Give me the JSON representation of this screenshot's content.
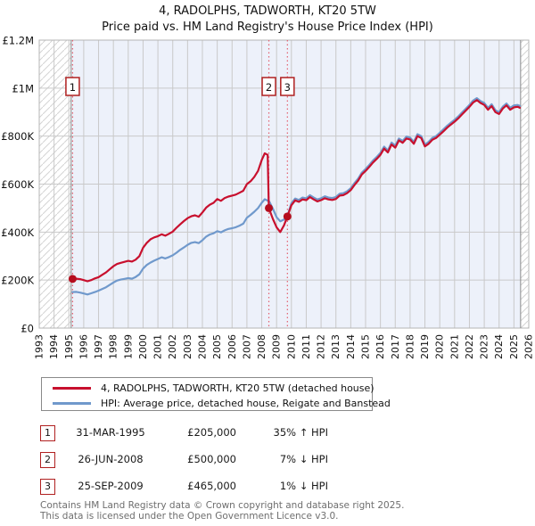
{
  "title": "4, RADOLPHS, TADWORTH, KT20 5TW",
  "subtitle": "Price paid vs. HM Land Registry's House Price Index (HPI)",
  "legend": [
    {
      "label": "4, RADOLPHS, TADWORTH, KT20 5TW (detached house)",
      "color": "#c8102e"
    },
    {
      "label": "HPI: Average price, detached house, Reigate and Banstead",
      "color": "#7099cc"
    }
  ],
  "sales": [
    {
      "num": "1",
      "date": "31-MAR-1995",
      "price": "£205,000",
      "hpi_delta": "35% ↑ HPI",
      "year": 1995.25,
      "value_k": 205
    },
    {
      "num": "2",
      "date": "26-JUN-2008",
      "price": "£500,000",
      "hpi_delta": "7% ↓ HPI",
      "year": 2008.48,
      "value_k": 500
    },
    {
      "num": "3",
      "date": "25-SEP-2009",
      "price": "£465,000",
      "hpi_delta": "1% ↓ HPI",
      "year": 2009.73,
      "value_k": 465
    }
  ],
  "footer": [
    "Contains HM Land Registry data © Crown copyright and database right 2025.",
    "This data is licensed under the Open Government Licence v3.0."
  ],
  "chart_data": {
    "type": "line",
    "unit": "GBP thousands",
    "x_range": [
      1993,
      2026
    ],
    "y_range_k": [
      0,
      1200
    ],
    "x_ticks": [
      1993,
      1994,
      1995,
      1996,
      1997,
      1998,
      1999,
      2000,
      2001,
      2002,
      2003,
      2004,
      2005,
      2006,
      2007,
      2008,
      2009,
      2010,
      2011,
      2012,
      2013,
      2014,
      2015,
      2016,
      2017,
      2018,
      2019,
      2020,
      2021,
      2022,
      2023,
      2024,
      2025,
      2026
    ],
    "y_ticks": [
      {
        "value_k": 0,
        "label": "£0"
      },
      {
        "value_k": 200,
        "label": "£200K"
      },
      {
        "value_k": 400,
        "label": "£400K"
      },
      {
        "value_k": 600,
        "label": "£600K"
      },
      {
        "value_k": 800,
        "label": "£800K"
      },
      {
        "value_k": 1000,
        "label": "£1M"
      },
      {
        "value_k": 1200,
        "label": "£1.2M"
      }
    ],
    "no_data_hatch_regions": [
      [
        1993,
        1995.15
      ],
      [
        2025.45,
        2026
      ]
    ],
    "grid": true,
    "plot_bg": "#edf1fa",
    "grid_color": "#c9c9c9",
    "hatch_color": "#d4d4d4",
    "marker_line_color": "#e2606e",
    "dot_color": "#b50d1e",
    "series": [
      {
        "name": "4, RADOLPHS, TADWORTH, KT20 5TW (detached house)",
        "color": "#c8102e",
        "points": [
          [
            1995.25,
            205
          ],
          [
            1995.5,
            206
          ],
          [
            1995.75,
            204
          ],
          [
            1996,
            200
          ],
          [
            1996.25,
            195
          ],
          [
            1996.5,
            200
          ],
          [
            1996.75,
            207
          ],
          [
            1997,
            212
          ],
          [
            1997.25,
            222
          ],
          [
            1997.5,
            232
          ],
          [
            1997.75,
            245
          ],
          [
            1998,
            258
          ],
          [
            1998.25,
            267
          ],
          [
            1998.5,
            272
          ],
          [
            1998.75,
            276
          ],
          [
            1999,
            280
          ],
          [
            1999.25,
            277
          ],
          [
            1999.5,
            285
          ],
          [
            1999.75,
            300
          ],
          [
            2000,
            335
          ],
          [
            2000.25,
            355
          ],
          [
            2000.5,
            370
          ],
          [
            2000.75,
            378
          ],
          [
            2001,
            383
          ],
          [
            2001.25,
            391
          ],
          [
            2001.5,
            385
          ],
          [
            2001.75,
            393
          ],
          [
            2002,
            402
          ],
          [
            2002.25,
            418
          ],
          [
            2002.5,
            432
          ],
          [
            2002.75,
            446
          ],
          [
            2003,
            458
          ],
          [
            2003.25,
            466
          ],
          [
            2003.5,
            470
          ],
          [
            2003.75,
            464
          ],
          [
            2004,
            482
          ],
          [
            2004.25,
            502
          ],
          [
            2004.5,
            514
          ],
          [
            2004.75,
            522
          ],
          [
            2005,
            538
          ],
          [
            2005.25,
            530
          ],
          [
            2005.5,
            542
          ],
          [
            2005.75,
            548
          ],
          [
            2006,
            552
          ],
          [
            2006.25,
            556
          ],
          [
            2006.5,
            564
          ],
          [
            2006.75,
            572
          ],
          [
            2007,
            600
          ],
          [
            2007.25,
            612
          ],
          [
            2007.5,
            630
          ],
          [
            2007.75,
            655
          ],
          [
            2008,
            700
          ],
          [
            2008.2,
            728
          ],
          [
            2008.4,
            722
          ],
          [
            2008.48,
            500
          ],
          [
            2008.75,
            455
          ],
          [
            2009,
            420
          ],
          [
            2009.25,
            400
          ],
          [
            2009.5,
            428
          ],
          [
            2009.73,
            465
          ],
          [
            2010,
            512
          ],
          [
            2010.25,
            532
          ],
          [
            2010.5,
            526
          ],
          [
            2010.75,
            536
          ],
          [
            2011,
            533
          ],
          [
            2011.25,
            546
          ],
          [
            2011.5,
            536
          ],
          [
            2011.75,
            528
          ],
          [
            2012,
            533
          ],
          [
            2012.25,
            541
          ],
          [
            2012.5,
            536
          ],
          [
            2012.75,
            534
          ],
          [
            2013,
            538
          ],
          [
            2013.25,
            552
          ],
          [
            2013.5,
            554
          ],
          [
            2013.75,
            562
          ],
          [
            2014,
            575
          ],
          [
            2014.25,
            596
          ],
          [
            2014.5,
            615
          ],
          [
            2014.75,
            640
          ],
          [
            2015,
            655
          ],
          [
            2015.25,
            672
          ],
          [
            2015.5,
            690
          ],
          [
            2015.75,
            705
          ],
          [
            2016,
            722
          ],
          [
            2016.25,
            748
          ],
          [
            2016.5,
            732
          ],
          [
            2016.75,
            765
          ],
          [
            2017,
            752
          ],
          [
            2017.25,
            782
          ],
          [
            2017.5,
            772
          ],
          [
            2017.75,
            790
          ],
          [
            2018,
            786
          ],
          [
            2018.25,
            768
          ],
          [
            2018.5,
            800
          ],
          [
            2018.75,
            792
          ],
          [
            2019,
            757
          ],
          [
            2019.25,
            768
          ],
          [
            2019.5,
            785
          ],
          [
            2019.75,
            792
          ],
          [
            2020,
            806
          ],
          [
            2020.25,
            820
          ],
          [
            2020.5,
            835
          ],
          [
            2020.75,
            848
          ],
          [
            2021,
            860
          ],
          [
            2021.25,
            874
          ],
          [
            2021.5,
            890
          ],
          [
            2021.75,
            906
          ],
          [
            2022,
            922
          ],
          [
            2022.25,
            940
          ],
          [
            2022.5,
            950
          ],
          [
            2022.75,
            938
          ],
          [
            2023,
            930
          ],
          [
            2023.25,
            910
          ],
          [
            2023.5,
            925
          ],
          [
            2023.75,
            900
          ],
          [
            2024,
            892
          ],
          [
            2024.25,
            915
          ],
          [
            2024.5,
            928
          ],
          [
            2024.75,
            910
          ],
          [
            2025,
            920
          ],
          [
            2025.25,
            922
          ],
          [
            2025.4,
            918
          ]
        ]
      },
      {
        "name": "HPI: Average price, detached house, Reigate and Banstead",
        "color": "#7099cc",
        "points": [
          [
            1995.25,
            150
          ],
          [
            1995.5,
            151
          ],
          [
            1995.75,
            148
          ],
          [
            1996,
            144
          ],
          [
            1996.25,
            140
          ],
          [
            1996.5,
            145
          ],
          [
            1996.75,
            150
          ],
          [
            1997,
            156
          ],
          [
            1997.25,
            163
          ],
          [
            1997.5,
            170
          ],
          [
            1997.75,
            180
          ],
          [
            1998,
            190
          ],
          [
            1998.25,
            198
          ],
          [
            1998.5,
            202
          ],
          [
            1998.75,
            205
          ],
          [
            1999,
            208
          ],
          [
            1999.25,
            206
          ],
          [
            1999.5,
            213
          ],
          [
            1999.75,
            224
          ],
          [
            2000,
            248
          ],
          [
            2000.25,
            263
          ],
          [
            2000.5,
            273
          ],
          [
            2000.75,
            281
          ],
          [
            2001,
            288
          ],
          [
            2001.25,
            295
          ],
          [
            2001.5,
            290
          ],
          [
            2001.75,
            296
          ],
          [
            2002,
            303
          ],
          [
            2002.25,
            314
          ],
          [
            2002.5,
            326
          ],
          [
            2002.75,
            336
          ],
          [
            2003,
            347
          ],
          [
            2003.25,
            355
          ],
          [
            2003.5,
            358
          ],
          [
            2003.75,
            354
          ],
          [
            2004,
            366
          ],
          [
            2004.25,
            381
          ],
          [
            2004.5,
            390
          ],
          [
            2004.75,
            395
          ],
          [
            2005,
            404
          ],
          [
            2005.25,
            399
          ],
          [
            2005.5,
            407
          ],
          [
            2005.75,
            413
          ],
          [
            2006,
            416
          ],
          [
            2006.25,
            420
          ],
          [
            2006.5,
            427
          ],
          [
            2006.75,
            435
          ],
          [
            2007,
            460
          ],
          [
            2007.25,
            472
          ],
          [
            2007.5,
            485
          ],
          [
            2007.75,
            500
          ],
          [
            2008,
            522
          ],
          [
            2008.2,
            537
          ],
          [
            2008.5,
            528
          ],
          [
            2008.75,
            498
          ],
          [
            2009,
            462
          ],
          [
            2009.25,
            445
          ],
          [
            2009.5,
            452
          ],
          [
            2009.75,
            472
          ],
          [
            2010,
            520
          ],
          [
            2010.25,
            540
          ],
          [
            2010.5,
            534
          ],
          [
            2010.75,
            544
          ],
          [
            2011,
            541
          ],
          [
            2011.25,
            554
          ],
          [
            2011.5,
            544
          ],
          [
            2011.75,
            536
          ],
          [
            2012,
            541
          ],
          [
            2012.25,
            549
          ],
          [
            2012.5,
            544
          ],
          [
            2012.75,
            542
          ],
          [
            2013,
            546
          ],
          [
            2013.25,
            560
          ],
          [
            2013.5,
            562
          ],
          [
            2013.75,
            570
          ],
          [
            2014,
            583
          ],
          [
            2014.25,
            604
          ],
          [
            2014.5,
            623
          ],
          [
            2014.75,
            648
          ],
          [
            2015,
            663
          ],
          [
            2015.25,
            680
          ],
          [
            2015.5,
            698
          ],
          [
            2015.75,
            713
          ],
          [
            2016,
            730
          ],
          [
            2016.25,
            756
          ],
          [
            2016.5,
            740
          ],
          [
            2016.75,
            773
          ],
          [
            2017,
            760
          ],
          [
            2017.25,
            790
          ],
          [
            2017.5,
            780
          ],
          [
            2017.75,
            798
          ],
          [
            2018,
            794
          ],
          [
            2018.25,
            776
          ],
          [
            2018.5,
            808
          ],
          [
            2018.75,
            800
          ],
          [
            2019,
            765
          ],
          [
            2019.25,
            776
          ],
          [
            2019.5,
            793
          ],
          [
            2019.75,
            800
          ],
          [
            2020,
            814
          ],
          [
            2020.25,
            828
          ],
          [
            2020.5,
            843
          ],
          [
            2020.75,
            856
          ],
          [
            2021,
            868
          ],
          [
            2021.25,
            882
          ],
          [
            2021.5,
            898
          ],
          [
            2021.75,
            914
          ],
          [
            2022,
            930
          ],
          [
            2022.25,
            948
          ],
          [
            2022.5,
            958
          ],
          [
            2022.75,
            946
          ],
          [
            2023,
            938
          ],
          [
            2023.25,
            918
          ],
          [
            2023.5,
            933
          ],
          [
            2023.75,
            908
          ],
          [
            2024,
            900
          ],
          [
            2024.25,
            923
          ],
          [
            2024.5,
            936
          ],
          [
            2024.75,
            918
          ],
          [
            2025,
            928
          ],
          [
            2025.25,
            930
          ],
          [
            2025.4,
            926
          ]
        ]
      }
    ]
  }
}
